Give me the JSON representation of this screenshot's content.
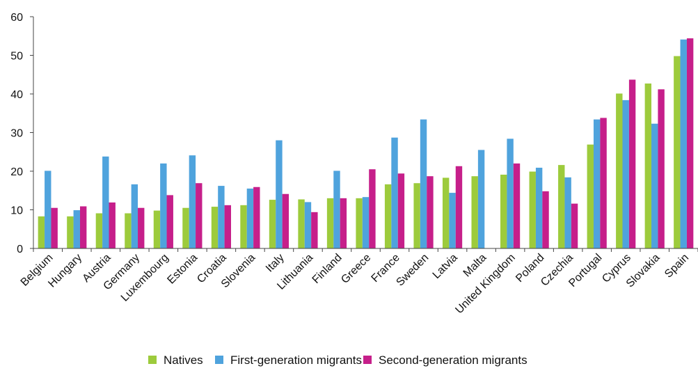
{
  "chart_data": {
    "type": "bar",
    "title": "",
    "xlabel": "",
    "ylabel": "",
    "ylim": [
      0,
      60
    ],
    "yticks": [
      0,
      10,
      20,
      30,
      40,
      50,
      60
    ],
    "grid": false,
    "legend_position": "bottom",
    "categories": [
      "Belgium",
      "Hungary",
      "Austria",
      "Germany",
      "Luxembourg",
      "Estonia",
      "Croatia",
      "Slovenia",
      "Italy",
      "Lithuania",
      "Finland",
      "Greece",
      "France",
      "Sweden",
      "Latvia",
      "Malta",
      "United Kingdom",
      "Poland",
      "Czechia",
      "Portugal",
      "Cyprus",
      "Slovakia",
      "Spain"
    ],
    "series": [
      {
        "name": "Natives",
        "color": "#9dcb3c",
        "values": [
          8.3,
          8.3,
          9.1,
          9.1,
          9.8,
          10.5,
          10.8,
          11.2,
          12.6,
          12.7,
          13.0,
          13.0,
          16.6,
          16.9,
          18.3,
          18.7,
          19.1,
          19.9,
          21.6,
          26.9,
          40.1,
          42.7,
          49.8
        ]
      },
      {
        "name": "First-generation migrants",
        "color": "#4fa3dd",
        "values": [
          20.1,
          9.9,
          23.8,
          16.6,
          22.0,
          24.1,
          16.2,
          15.5,
          28.0,
          12.0,
          20.1,
          13.3,
          28.7,
          33.4,
          14.4,
          25.5,
          28.4,
          20.9,
          18.4,
          33.4,
          38.4,
          32.3,
          54.1
        ]
      },
      {
        "name": "Second-generation migrants",
        "color": "#c61f8a",
        "values": [
          10.5,
          10.9,
          11.9,
          10.5,
          13.8,
          16.9,
          11.2,
          15.9,
          14.1,
          9.4,
          13.0,
          20.5,
          19.4,
          18.7,
          21.3,
          null,
          22.0,
          14.8,
          11.6,
          33.8,
          43.7,
          41.2,
          54.4
        ]
      }
    ]
  }
}
